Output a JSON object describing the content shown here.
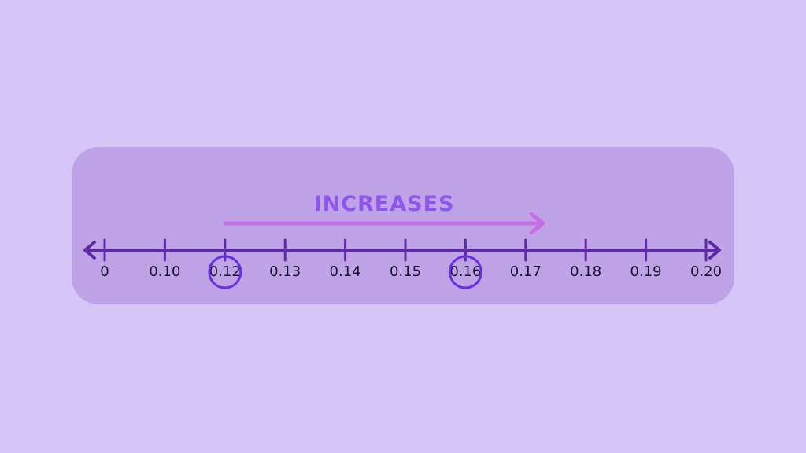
{
  "caption": "INCREASES",
  "number_line": {
    "labels": [
      "0",
      "0.10",
      "0.12",
      "0.13",
      "0.14",
      "0.15",
      "0.16",
      "0.17",
      "0.18",
      "0.19",
      "0.20"
    ],
    "circled": [
      "0.12",
      "0.16"
    ]
  },
  "colors": {
    "background": "#d6c5f7",
    "panel": "#bea4e6",
    "line": "#5e2aa8",
    "caption": "#8f55f0",
    "arrow": "#c76de6",
    "circle": "#6a2cf0",
    "label": "#1b1230"
  }
}
